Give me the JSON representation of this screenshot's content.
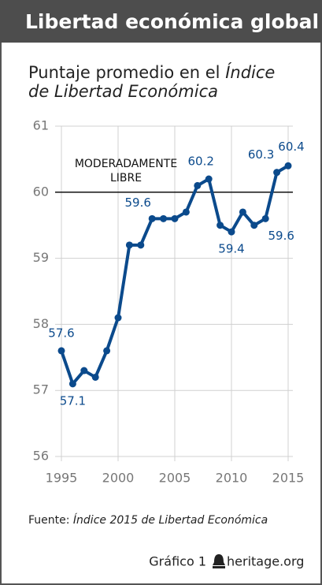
{
  "chart_data": {
    "type": "line",
    "title": "Libertad económica global",
    "subtitle": {
      "text": "Puntaje promedio en el",
      "italic": "Índice de Libertad Económica"
    },
    "x": [
      1995,
      1996,
      1997,
      1998,
      1999,
      2000,
      2001,
      2002,
      2003,
      2004,
      2005,
      2006,
      2007,
      2008,
      2009,
      2010,
      2011,
      2012,
      2013,
      2014,
      2015
    ],
    "series": [
      {
        "name": "Puntaje promedio",
        "color": "#0b4a8c",
        "values": [
          57.6,
          57.1,
          57.3,
          57.2,
          57.6,
          58.1,
          59.2,
          59.2,
          59.6,
          59.6,
          59.6,
          59.7,
          60.1,
          60.2,
          59.5,
          59.4,
          59.7,
          59.5,
          59.6,
          60.3,
          60.4
        ],
        "value_labels": [
          "57.6",
          "57.1",
          null,
          null,
          null,
          null,
          null,
          null,
          "59.6",
          null,
          null,
          null,
          null,
          "60.2",
          null,
          "59.4",
          null,
          null,
          "59.6",
          "60.3",
          "60.4"
        ]
      }
    ],
    "xlim": [
      1995,
      2015
    ],
    "xticks": [
      1995,
      2000,
      2005,
      2010,
      2015
    ],
    "ylim": [
      56,
      61
    ],
    "yticks": [
      56,
      57,
      58,
      59,
      60,
      61
    ],
    "grid": true,
    "reference_line": {
      "value": 60,
      "label": [
        "MODERADAMENTE",
        "LIBRE"
      ]
    },
    "source": {
      "text": "Fuente:",
      "italic": "Índice 2015 de Libertad Económica"
    },
    "footer": {
      "chart": "Gráfico 1",
      "site": "heritage.org"
    }
  }
}
